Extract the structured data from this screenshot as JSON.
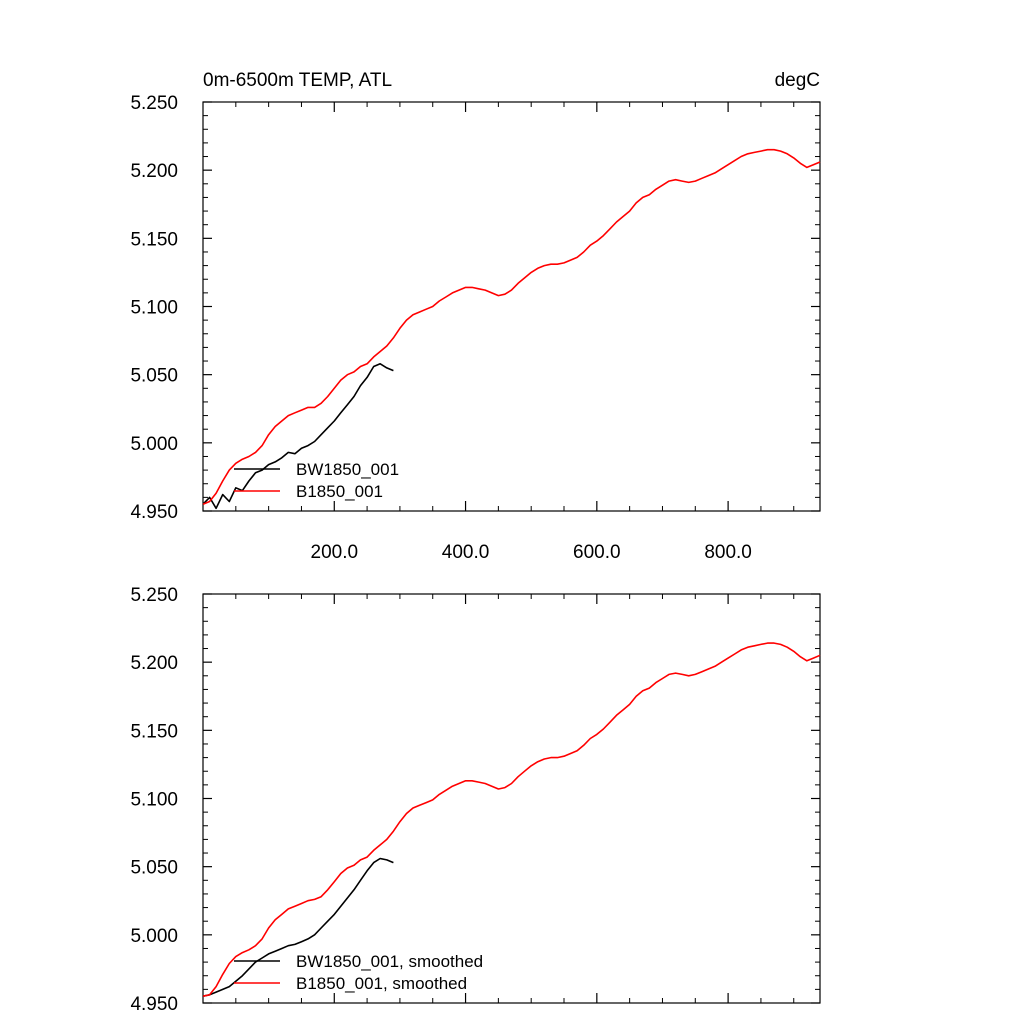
{
  "colors": {
    "BW1850_001": "#000000",
    "B1850_001": "#ff0000",
    "axis": "#000000",
    "background": "#ffffff"
  },
  "chart_data": [
    {
      "type": "line",
      "title": "0m-6500m TEMP, ATL",
      "units": "degC",
      "xlabel": "",
      "ylabel": "",
      "xlim": [
        0,
        940
      ],
      "ylim": [
        4.95,
        5.25
      ],
      "x_tick_labels": [
        "200.0",
        "400.0",
        "600.0",
        "800.0"
      ],
      "y_tick_labels": [
        "4.950",
        "5.000",
        "5.050",
        "5.100",
        "5.150",
        "5.200",
        "5.250"
      ],
      "legend_position": "bottom-left",
      "series": [
        {
          "name": "BW1850_001",
          "legend_label": "BW1850_001",
          "color": "#000000",
          "points": [
            [
              0,
              4.955
            ],
            [
              10,
              4.96
            ],
            [
              20,
              4.952
            ],
            [
              30,
              4.962
            ],
            [
              40,
              4.957
            ],
            [
              50,
              4.967
            ],
            [
              60,
              4.965
            ],
            [
              70,
              4.972
            ],
            [
              80,
              4.978
            ],
            [
              90,
              4.98
            ],
            [
              100,
              4.984
            ],
            [
              110,
              4.986
            ],
            [
              120,
              4.989
            ],
            [
              130,
              4.993
            ],
            [
              140,
              4.992
            ],
            [
              150,
              4.996
            ],
            [
              160,
              4.998
            ],
            [
              170,
              5.001
            ],
            [
              180,
              5.006
            ],
            [
              190,
              5.011
            ],
            [
              200,
              5.016
            ],
            [
              210,
              5.022
            ],
            [
              220,
              5.028
            ],
            [
              230,
              5.034
            ],
            [
              240,
              5.042
            ],
            [
              250,
              5.048
            ],
            [
              260,
              5.056
            ],
            [
              270,
              5.058
            ],
            [
              280,
              5.055
            ],
            [
              290,
              5.053
            ]
          ]
        },
        {
          "name": "B1850_001",
          "legend_label": "B1850_001",
          "color": "#ff0000",
          "points": [
            [
              0,
              4.955
            ],
            [
              10,
              4.957
            ],
            [
              20,
              4.963
            ],
            [
              30,
              4.972
            ],
            [
              40,
              4.98
            ],
            [
              50,
              4.985
            ],
            [
              60,
              4.988
            ],
            [
              70,
              4.99
            ],
            [
              80,
              4.993
            ],
            [
              90,
              4.998
            ],
            [
              100,
              5.006
            ],
            [
              110,
              5.012
            ],
            [
              120,
              5.016
            ],
            [
              130,
              5.02
            ],
            [
              140,
              5.022
            ],
            [
              150,
              5.024
            ],
            [
              160,
              5.026
            ],
            [
              170,
              5.026
            ],
            [
              180,
              5.029
            ],
            [
              190,
              5.034
            ],
            [
              200,
              5.04
            ],
            [
              210,
              5.046
            ],
            [
              220,
              5.05
            ],
            [
              230,
              5.052
            ],
            [
              240,
              5.056
            ],
            [
              250,
              5.058
            ],
            [
              260,
              5.063
            ],
            [
              270,
              5.067
            ],
            [
              280,
              5.071
            ],
            [
              290,
              5.077
            ],
            [
              300,
              5.084
            ],
            [
              310,
              5.09
            ],
            [
              320,
              5.094
            ],
            [
              330,
              5.096
            ],
            [
              340,
              5.098
            ],
            [
              350,
              5.1
            ],
            [
              360,
              5.104
            ],
            [
              370,
              5.107
            ],
            [
              380,
              5.11
            ],
            [
              390,
              5.112
            ],
            [
              400,
              5.114
            ],
            [
              410,
              5.114
            ],
            [
              420,
              5.113
            ],
            [
              430,
              5.112
            ],
            [
              440,
              5.11
            ],
            [
              450,
              5.108
            ],
            [
              460,
              5.109
            ],
            [
              470,
              5.112
            ],
            [
              480,
              5.117
            ],
            [
              490,
              5.121
            ],
            [
              500,
              5.125
            ],
            [
              510,
              5.128
            ],
            [
              520,
              5.13
            ],
            [
              530,
              5.131
            ],
            [
              540,
              5.131
            ],
            [
              550,
              5.132
            ],
            [
              560,
              5.134
            ],
            [
              570,
              5.136
            ],
            [
              580,
              5.14
            ],
            [
              590,
              5.145
            ],
            [
              600,
              5.148
            ],
            [
              610,
              5.152
            ],
            [
              620,
              5.157
            ],
            [
              630,
              5.162
            ],
            [
              640,
              5.166
            ],
            [
              650,
              5.17
            ],
            [
              660,
              5.176
            ],
            [
              670,
              5.18
            ],
            [
              680,
              5.182
            ],
            [
              690,
              5.186
            ],
            [
              700,
              5.189
            ],
            [
              710,
              5.192
            ],
            [
              720,
              5.193
            ],
            [
              730,
              5.192
            ],
            [
              740,
              5.191
            ],
            [
              750,
              5.192
            ],
            [
              760,
              5.194
            ],
            [
              770,
              5.196
            ],
            [
              780,
              5.198
            ],
            [
              790,
              5.201
            ],
            [
              800,
              5.204
            ],
            [
              810,
              5.207
            ],
            [
              820,
              5.21
            ],
            [
              830,
              5.212
            ],
            [
              840,
              5.213
            ],
            [
              850,
              5.214
            ],
            [
              860,
              5.215
            ],
            [
              870,
              5.215
            ],
            [
              880,
              5.214
            ],
            [
              890,
              5.212
            ],
            [
              900,
              5.209
            ],
            [
              910,
              5.205
            ],
            [
              920,
              5.202
            ],
            [
              930,
              5.204
            ],
            [
              940,
              5.206
            ]
          ]
        }
      ]
    },
    {
      "type": "line",
      "title": "",
      "units": "",
      "xlabel": "",
      "ylabel": "",
      "xlim": [
        0,
        940
      ],
      "ylim": [
        4.95,
        5.25
      ],
      "x_tick_labels": [],
      "y_tick_labels": [
        "4.950",
        "5.000",
        "5.050",
        "5.100",
        "5.150",
        "5.200",
        "5.250"
      ],
      "legend_position": "bottom-left",
      "series": [
        {
          "name": "BW1850_001",
          "legend_label": "BW1850_001, smoothed",
          "color": "#000000",
          "points": [
            [
              0,
              4.955
            ],
            [
              10,
              4.956
            ],
            [
              20,
              4.958
            ],
            [
              30,
              4.96
            ],
            [
              40,
              4.962
            ],
            [
              50,
              4.966
            ],
            [
              60,
              4.97
            ],
            [
              70,
              4.975
            ],
            [
              80,
              4.98
            ],
            [
              90,
              4.983
            ],
            [
              100,
              4.986
            ],
            [
              110,
              4.988
            ],
            [
              120,
              4.99
            ],
            [
              130,
              4.992
            ],
            [
              140,
              4.993
            ],
            [
              150,
              4.995
            ],
            [
              160,
              4.997
            ],
            [
              170,
              5.0
            ],
            [
              180,
              5.005
            ],
            [
              190,
              5.01
            ],
            [
              200,
              5.015
            ],
            [
              210,
              5.021
            ],
            [
              220,
              5.027
            ],
            [
              230,
              5.033
            ],
            [
              240,
              5.04
            ],
            [
              250,
              5.047
            ],
            [
              260,
              5.053
            ],
            [
              270,
              5.056
            ],
            [
              280,
              5.055
            ],
            [
              290,
              5.053
            ]
          ]
        },
        {
          "name": "B1850_001",
          "legend_label": "B1850_001, smoothed",
          "color": "#ff0000",
          "points": [
            [
              0,
              4.955
            ],
            [
              10,
              4.956
            ],
            [
              20,
              4.962
            ],
            [
              30,
              4.971
            ],
            [
              40,
              4.979
            ],
            [
              50,
              4.984
            ],
            [
              60,
              4.987
            ],
            [
              70,
              4.989
            ],
            [
              80,
              4.992
            ],
            [
              90,
              4.997
            ],
            [
              100,
              5.005
            ],
            [
              110,
              5.011
            ],
            [
              120,
              5.015
            ],
            [
              130,
              5.019
            ],
            [
              140,
              5.021
            ],
            [
              150,
              5.023
            ],
            [
              160,
              5.025
            ],
            [
              170,
              5.026
            ],
            [
              180,
              5.028
            ],
            [
              190,
              5.033
            ],
            [
              200,
              5.039
            ],
            [
              210,
              5.045
            ],
            [
              220,
              5.049
            ],
            [
              230,
              5.051
            ],
            [
              240,
              5.055
            ],
            [
              250,
              5.057
            ],
            [
              260,
              5.062
            ],
            [
              270,
              5.066
            ],
            [
              280,
              5.07
            ],
            [
              290,
              5.076
            ],
            [
              300,
              5.083
            ],
            [
              310,
              5.089
            ],
            [
              320,
              5.093
            ],
            [
              330,
              5.095
            ],
            [
              340,
              5.097
            ],
            [
              350,
              5.099
            ],
            [
              360,
              5.103
            ],
            [
              370,
              5.106
            ],
            [
              380,
              5.109
            ],
            [
              390,
              5.111
            ],
            [
              400,
              5.113
            ],
            [
              410,
              5.113
            ],
            [
              420,
              5.112
            ],
            [
              430,
              5.111
            ],
            [
              440,
              5.109
            ],
            [
              450,
              5.107
            ],
            [
              460,
              5.108
            ],
            [
              470,
              5.111
            ],
            [
              480,
              5.116
            ],
            [
              490,
              5.12
            ],
            [
              500,
              5.124
            ],
            [
              510,
              5.127
            ],
            [
              520,
              5.129
            ],
            [
              530,
              5.13
            ],
            [
              540,
              5.13
            ],
            [
              550,
              5.131
            ],
            [
              560,
              5.133
            ],
            [
              570,
              5.135
            ],
            [
              580,
              5.139
            ],
            [
              590,
              5.144
            ],
            [
              600,
              5.147
            ],
            [
              610,
              5.151
            ],
            [
              620,
              5.156
            ],
            [
              630,
              5.161
            ],
            [
              640,
              5.165
            ],
            [
              650,
              5.169
            ],
            [
              660,
              5.175
            ],
            [
              670,
              5.179
            ],
            [
              680,
              5.181
            ],
            [
              690,
              5.185
            ],
            [
              700,
              5.188
            ],
            [
              710,
              5.191
            ],
            [
              720,
              5.192
            ],
            [
              730,
              5.191
            ],
            [
              740,
              5.19
            ],
            [
              750,
              5.191
            ],
            [
              760,
              5.193
            ],
            [
              770,
              5.195
            ],
            [
              780,
              5.197
            ],
            [
              790,
              5.2
            ],
            [
              800,
              5.203
            ],
            [
              810,
              5.206
            ],
            [
              820,
              5.209
            ],
            [
              830,
              5.211
            ],
            [
              840,
              5.212
            ],
            [
              850,
              5.213
            ],
            [
              860,
              5.214
            ],
            [
              870,
              5.214
            ],
            [
              880,
              5.213
            ],
            [
              890,
              5.211
            ],
            [
              900,
              5.208
            ],
            [
              910,
              5.204
            ],
            [
              920,
              5.201
            ],
            [
              930,
              5.203
            ],
            [
              940,
              5.205
            ]
          ]
        }
      ]
    }
  ]
}
